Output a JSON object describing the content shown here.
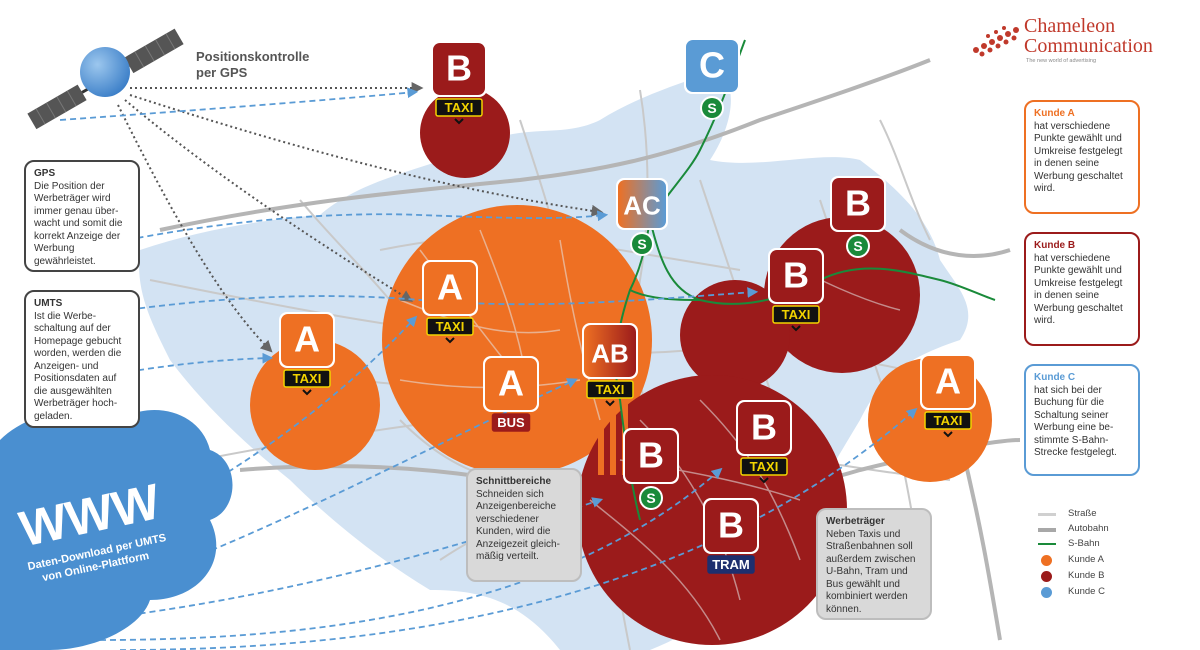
{
  "title": "Positionskontrolle\nper GPS",
  "title_lines": [
    "Positionskontrolle",
    "per GPS"
  ],
  "colors": {
    "kunde_a": "#ee7023",
    "kunde_b": "#9b1b1b",
    "kunde_c": "#5a9bd5",
    "water": "#cfe0f1",
    "road": "#c9c9c9",
    "sbahn": "#1a8a3a"
  },
  "icons": {
    "satellite": "satellite-icon",
    "cloud": "cloud-icon",
    "sbahn": "s-bahn-icon"
  },
  "www": {
    "label": "WWW",
    "sub_line1": "Daten-Download per UMTS",
    "sub_line2": "von Online-Plattform"
  },
  "logo": {
    "name_line1": "Chameleon",
    "name_line2": "Communication",
    "tagline": "The new world of advertising"
  },
  "info": {
    "gps": {
      "title": "GPS",
      "text": "Die Position der Werbeträger wird immer genau über-wacht und somit die korrekt Anzeige der Werbung gewährleistet."
    },
    "umts": {
      "title": "UMTS",
      "text": "Ist die Werbe-schaltung auf der Homepage gebucht worden, werden die Anzeigen- und Positionsdaten auf die ausgewählten Werbeträger hoch-geladen."
    },
    "schnitt": {
      "title": "Schnittbereiche",
      "text": "Schneiden sich Anzeigenbereiche verschiedener Kunden, wird die Anzeigezeit gleich-mäßig verteilt."
    },
    "werbetraeger": {
      "title": "Werbeträger",
      "text": "Neben Taxis und Straßenbahnen soll außerdem zwischen U-Bahn, Tram und Bus gewählt und kombiniert werden können."
    },
    "kunde_a": {
      "title": "Kunde A",
      "text": "hat verschiedene Punkte gewählt und Umkreise festgelegt in denen seine Werbung geschaltet wird."
    },
    "kunde_b": {
      "title": "Kunde B",
      "text": "hat verschiedene Punkte gewählt und Umkreise festgelegt in denen seine Werbung geschaltet wird."
    },
    "kunde_c": {
      "title": "Kunde C",
      "text": "hat sich bei der Buchung für die Schaltung seiner Werbung eine be-stimmte S-Bahn-Strecke festgelegt."
    }
  },
  "legend": [
    {
      "label": "Straße",
      "kind": "line",
      "color": "#d0d0d0"
    },
    {
      "label": "Autobahn",
      "kind": "line",
      "color": "#a8a8a8"
    },
    {
      "label": "S-Bahn",
      "kind": "line",
      "color": "#1a8a3a"
    },
    {
      "label": "Kunde A",
      "kind": "dot",
      "color": "#ee7023"
    },
    {
      "label": "Kunde B",
      "kind": "dot",
      "color": "#9b1b1b"
    },
    {
      "label": "Kunde C",
      "kind": "dot",
      "color": "#5a9bd5"
    }
  ],
  "markers": [
    {
      "id": "b-taxi-top",
      "letter": "B",
      "kunde": "b",
      "tag": "TAXI"
    },
    {
      "id": "c-sbahn",
      "letter": "C",
      "kunde": "c",
      "tag": "S"
    },
    {
      "id": "ac-sbahn",
      "letter": "AC",
      "kunde": "ac",
      "tag": "S"
    },
    {
      "id": "b-sbahn-right",
      "letter": "B",
      "kunde": "b",
      "tag": "S"
    },
    {
      "id": "b-taxi-right",
      "letter": "B",
      "kunde": "b",
      "tag": "TAXI"
    },
    {
      "id": "a-taxi-left",
      "letter": "A",
      "kunde": "a",
      "tag": "TAXI"
    },
    {
      "id": "a-taxi-mid",
      "letter": "A",
      "kunde": "a",
      "tag": "TAXI"
    },
    {
      "id": "a-bus",
      "letter": "A",
      "kunde": "a",
      "tag": "BUS"
    },
    {
      "id": "ab-taxi",
      "letter": "AB",
      "kunde": "ab",
      "tag": "TAXI"
    },
    {
      "id": "b-sbahn-center",
      "letter": "B",
      "kunde": "b",
      "tag": "S"
    },
    {
      "id": "b-taxi-center",
      "letter": "B",
      "kunde": "b",
      "tag": "TAXI"
    },
    {
      "id": "b-tram",
      "letter": "B",
      "kunde": "b",
      "tag": "TRAM"
    },
    {
      "id": "a-taxi-right",
      "letter": "A",
      "kunde": "a",
      "tag": "TAXI"
    }
  ]
}
